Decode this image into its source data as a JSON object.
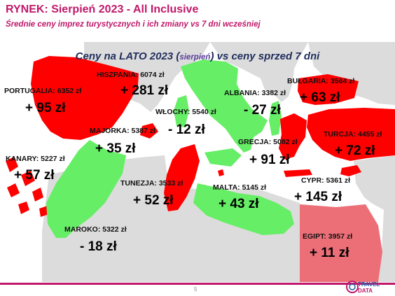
{
  "header": {
    "title": "RYNEK: Sierpień 2023 - All Inclusive",
    "subtitle": "Średnie ceny imprez turystycznych i ich zmiany vs 7 dni wcześniej"
  },
  "map_title": {
    "main_before": "Ceny na LATO 2023 (",
    "small": "sierpień",
    "main_after": ") vs ceny sprzed 7 dni"
  },
  "colors": {
    "increase": "#ff0000",
    "decrease": "#66ee66",
    "neutral_land": "#dcdcdc",
    "sea": "#ffffff",
    "egypt": "#ec6f78",
    "accent": "#c0186a"
  },
  "destinations": [
    {
      "id": "portugalia",
      "label": "PORTUGALIA: 6352 zł",
      "change": "+ 95 zł",
      "trend": "up"
    },
    {
      "id": "hiszpania",
      "label": "HISZPANIA: 6074 zł",
      "change": "+ 281 zł",
      "trend": "up"
    },
    {
      "id": "majorka",
      "label": "MAJORKA: 5387 zł",
      "change": "+ 35 zł",
      "trend": "up"
    },
    {
      "id": "kanary",
      "label": "KANARY: 5227 zł",
      "change": "+ 57 zł",
      "trend": "up"
    },
    {
      "id": "maroko",
      "label": "MAROKO: 5322 zł",
      "change": "- 18 zł",
      "trend": "down"
    },
    {
      "id": "wlochy",
      "label": "WŁOCHY: 5540 zł",
      "change": "- 12 zł",
      "trend": "down"
    },
    {
      "id": "tunezja",
      "label": "TUNEZJA: 3533 zł",
      "change": "+ 52 zł",
      "trend": "up"
    },
    {
      "id": "malta",
      "label": "MALTA: 5145 zł",
      "change": "+ 43 zł",
      "trend": "up"
    },
    {
      "id": "albania",
      "label": "ALBANIA: 3382 zł",
      "change": "- 27 zł",
      "trend": "down"
    },
    {
      "id": "grecja",
      "label": "GRECJA: 5082 zł",
      "change": "+ 91 zł",
      "trend": "up"
    },
    {
      "id": "bulgaria",
      "label": "BUŁGARIA: 3564 zł",
      "change": "+ 63 zł",
      "trend": "up"
    },
    {
      "id": "turcja",
      "label": "TURCJA: 4455 zł",
      "change": "+ 72 zł",
      "trend": "up"
    },
    {
      "id": "cypr",
      "label": "CYPR: 5361 zł",
      "change": "+ 145 zł",
      "trend": "up"
    },
    {
      "id": "egipt",
      "label": "EGIPT: 3957 zł",
      "change": "+ 11 zł",
      "trend": "up"
    }
  ],
  "footer": {
    "page_number": "5",
    "logo_text": "TRAVEL DATA"
  }
}
